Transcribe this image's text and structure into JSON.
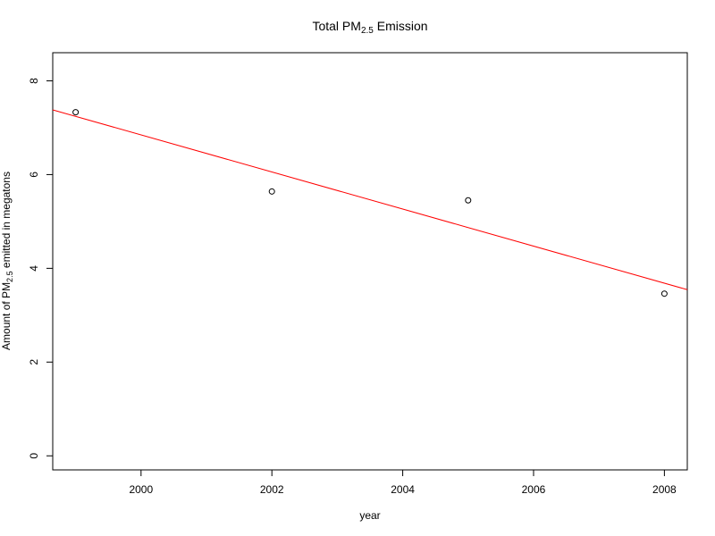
{
  "chart_data": {
    "type": "scatter",
    "title": {
      "pre": "Total PM",
      "sub": "2.5",
      "post": " Emission"
    },
    "xlabel": "year",
    "ylabel": {
      "pre": "Amount of PM",
      "sub": "2.5",
      "post": " emitted in megatons"
    },
    "xlim": [
      1998.65,
      2008.35
    ],
    "ylim": [
      -0.3,
      8.6
    ],
    "x_ticks": [
      2000,
      2002,
      2004,
      2006,
      2008
    ],
    "y_ticks": [
      0,
      2,
      4,
      6,
      8
    ],
    "x": [
      1999,
      2002,
      2005,
      2008
    ],
    "y": [
      7.33,
      5.64,
      5.45,
      3.46
    ],
    "trend_line": {
      "color": "#ff0000",
      "intercept_at_xmin": 7.38,
      "slope": -0.3954
    },
    "point_color": "#000000",
    "grid": false,
    "legend": "none"
  }
}
